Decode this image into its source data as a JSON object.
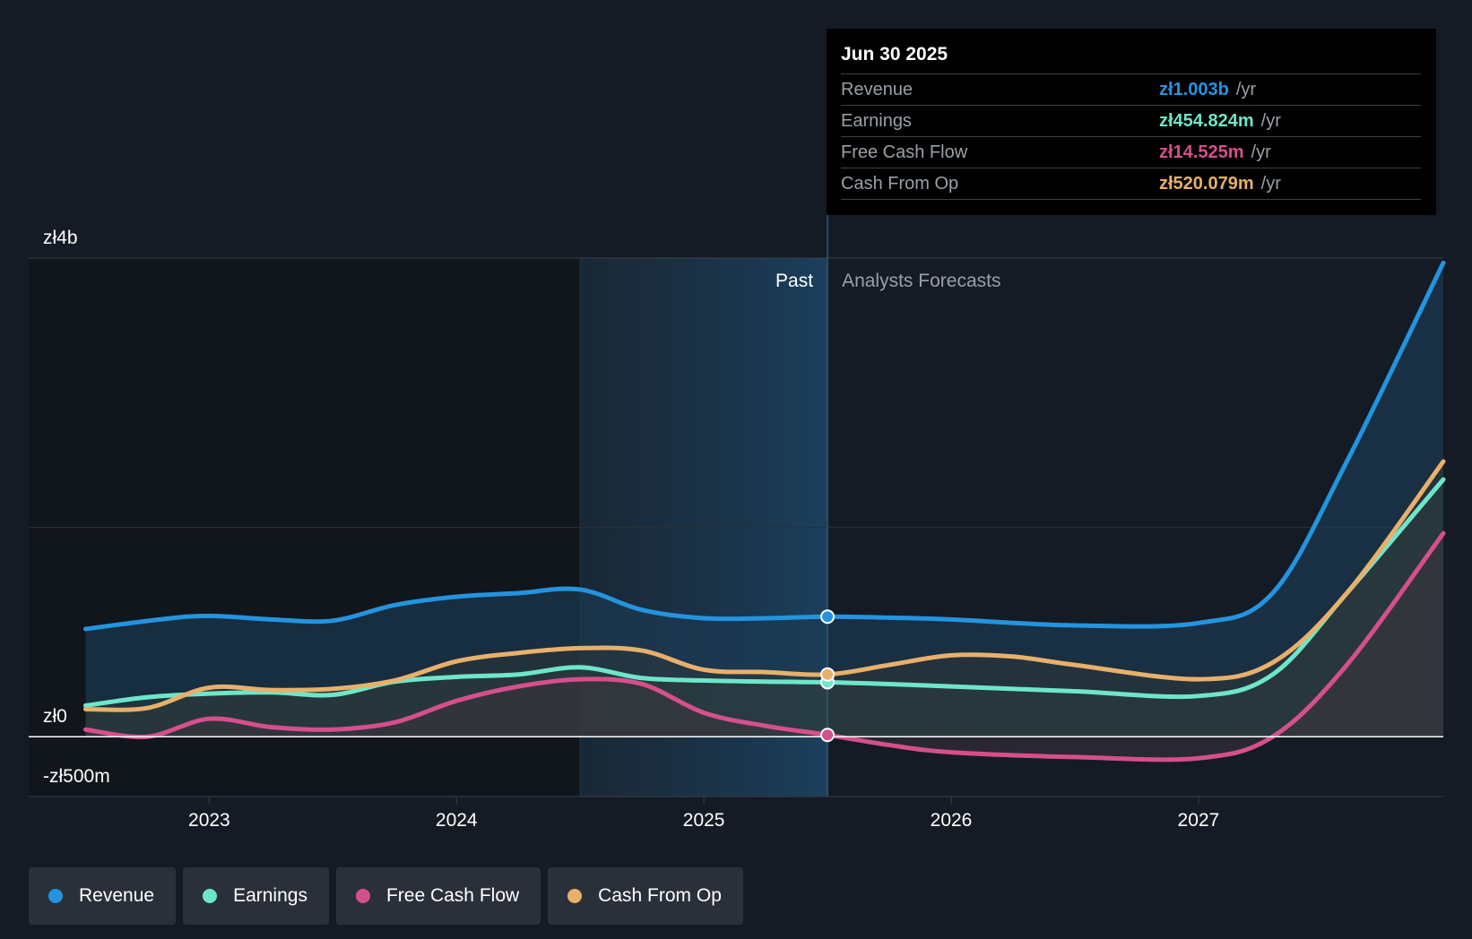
{
  "chart_data": {
    "type": "area",
    "currency": "zł",
    "y_labels": {
      "top": "zł4b",
      "zero": "zł0",
      "bottom": "-zł500m"
    },
    "ylim": [
      -500,
      4000
    ],
    "x_ticks": [
      {
        "label": "2023",
        "year": 2023.0
      },
      {
        "label": "2024",
        "year": 2024.0
      },
      {
        "label": "2025",
        "year": 2025.0
      },
      {
        "label": "2026",
        "year": 2026.0
      },
      {
        "label": "2027",
        "year": 2027.0
      }
    ],
    "xlim": [
      2022.27,
      2027.99
    ],
    "past_label": "Past",
    "forecast_label": "Analysts Forecasts",
    "past_region_start": 2024.5,
    "today": 2025.5,
    "series": [
      {
        "name": "Revenue",
        "color": "#2394df",
        "points": [
          [
            2022.5,
            900
          ],
          [
            2022.8,
            980
          ],
          [
            2023.0,
            1010
          ],
          [
            2023.25,
            980
          ],
          [
            2023.5,
            970
          ],
          [
            2023.75,
            1100
          ],
          [
            2024.0,
            1170
          ],
          [
            2024.25,
            1200
          ],
          [
            2024.5,
            1230
          ],
          [
            2024.75,
            1060
          ],
          [
            2025.0,
            990
          ],
          [
            2025.25,
            990
          ],
          [
            2025.5,
            1003
          ],
          [
            2025.75,
            995
          ],
          [
            2026.0,
            980
          ],
          [
            2026.5,
            930
          ],
          [
            2027.0,
            950
          ],
          [
            2027.3,
            1200
          ],
          [
            2027.6,
            2300
          ],
          [
            2027.99,
            3960
          ]
        ]
      },
      {
        "name": "Earnings",
        "color": "#6ee6c9",
        "points": [
          [
            2022.5,
            260
          ],
          [
            2022.75,
            330
          ],
          [
            2023.0,
            360
          ],
          [
            2023.25,
            370
          ],
          [
            2023.5,
            350
          ],
          [
            2023.75,
            460
          ],
          [
            2024.0,
            500
          ],
          [
            2024.25,
            520
          ],
          [
            2024.5,
            580
          ],
          [
            2024.75,
            490
          ],
          [
            2025.0,
            470
          ],
          [
            2025.25,
            460
          ],
          [
            2025.5,
            455
          ],
          [
            2025.75,
            440
          ],
          [
            2026.0,
            420
          ],
          [
            2026.5,
            380
          ],
          [
            2027.0,
            340
          ],
          [
            2027.3,
            520
          ],
          [
            2027.6,
            1200
          ],
          [
            2027.99,
            2150
          ]
        ]
      },
      {
        "name": "Free Cash Flow",
        "color": "#d64f8c",
        "points": [
          [
            2022.5,
            60
          ],
          [
            2022.75,
            0
          ],
          [
            2023.0,
            150
          ],
          [
            2023.25,
            80
          ],
          [
            2023.5,
            60
          ],
          [
            2023.75,
            120
          ],
          [
            2024.0,
            300
          ],
          [
            2024.25,
            420
          ],
          [
            2024.5,
            480
          ],
          [
            2024.75,
            440
          ],
          [
            2025.0,
            200
          ],
          [
            2025.25,
            90
          ],
          [
            2025.5,
            15
          ],
          [
            2025.75,
            -70
          ],
          [
            2026.0,
            -130
          ],
          [
            2026.5,
            -170
          ],
          [
            2027.0,
            -180
          ],
          [
            2027.3,
            0
          ],
          [
            2027.6,
            600
          ],
          [
            2027.99,
            1700
          ]
        ]
      },
      {
        "name": "Cash From Op",
        "color": "#e8b06a",
        "points": [
          [
            2022.5,
            230
          ],
          [
            2022.75,
            240
          ],
          [
            2023.0,
            410
          ],
          [
            2023.25,
            390
          ],
          [
            2023.5,
            400
          ],
          [
            2023.75,
            470
          ],
          [
            2024.0,
            630
          ],
          [
            2024.25,
            700
          ],
          [
            2024.5,
            740
          ],
          [
            2024.75,
            720
          ],
          [
            2025.0,
            560
          ],
          [
            2025.25,
            540
          ],
          [
            2025.5,
            520
          ],
          [
            2025.75,
            600
          ],
          [
            2026.0,
            680
          ],
          [
            2026.25,
            670
          ],
          [
            2026.5,
            600
          ],
          [
            2027.0,
            480
          ],
          [
            2027.3,
            620
          ],
          [
            2027.6,
            1200
          ],
          [
            2027.99,
            2300
          ]
        ]
      }
    ]
  },
  "tooltip": {
    "date": "Jun 30 2025",
    "rows": [
      {
        "label": "Revenue",
        "value": "zł1.003b",
        "unit": "/yr",
        "color": "#2394df"
      },
      {
        "label": "Earnings",
        "value": "zł454.824m",
        "unit": "/yr",
        "color": "#6ee6c9"
      },
      {
        "label": "Free Cash Flow",
        "value": "zł14.525m",
        "unit": "/yr",
        "color": "#d64f8c"
      },
      {
        "label": "Cash From Op",
        "value": "zł520.079m",
        "unit": "/yr",
        "color": "#e8b06a"
      }
    ]
  },
  "legend": [
    {
      "label": "Revenue",
      "color": "#2394df"
    },
    {
      "label": "Earnings",
      "color": "#6ee6c9"
    },
    {
      "label": "Free Cash Flow",
      "color": "#d64f8c"
    },
    {
      "label": "Cash From Op",
      "color": "#e8b06a"
    }
  ]
}
